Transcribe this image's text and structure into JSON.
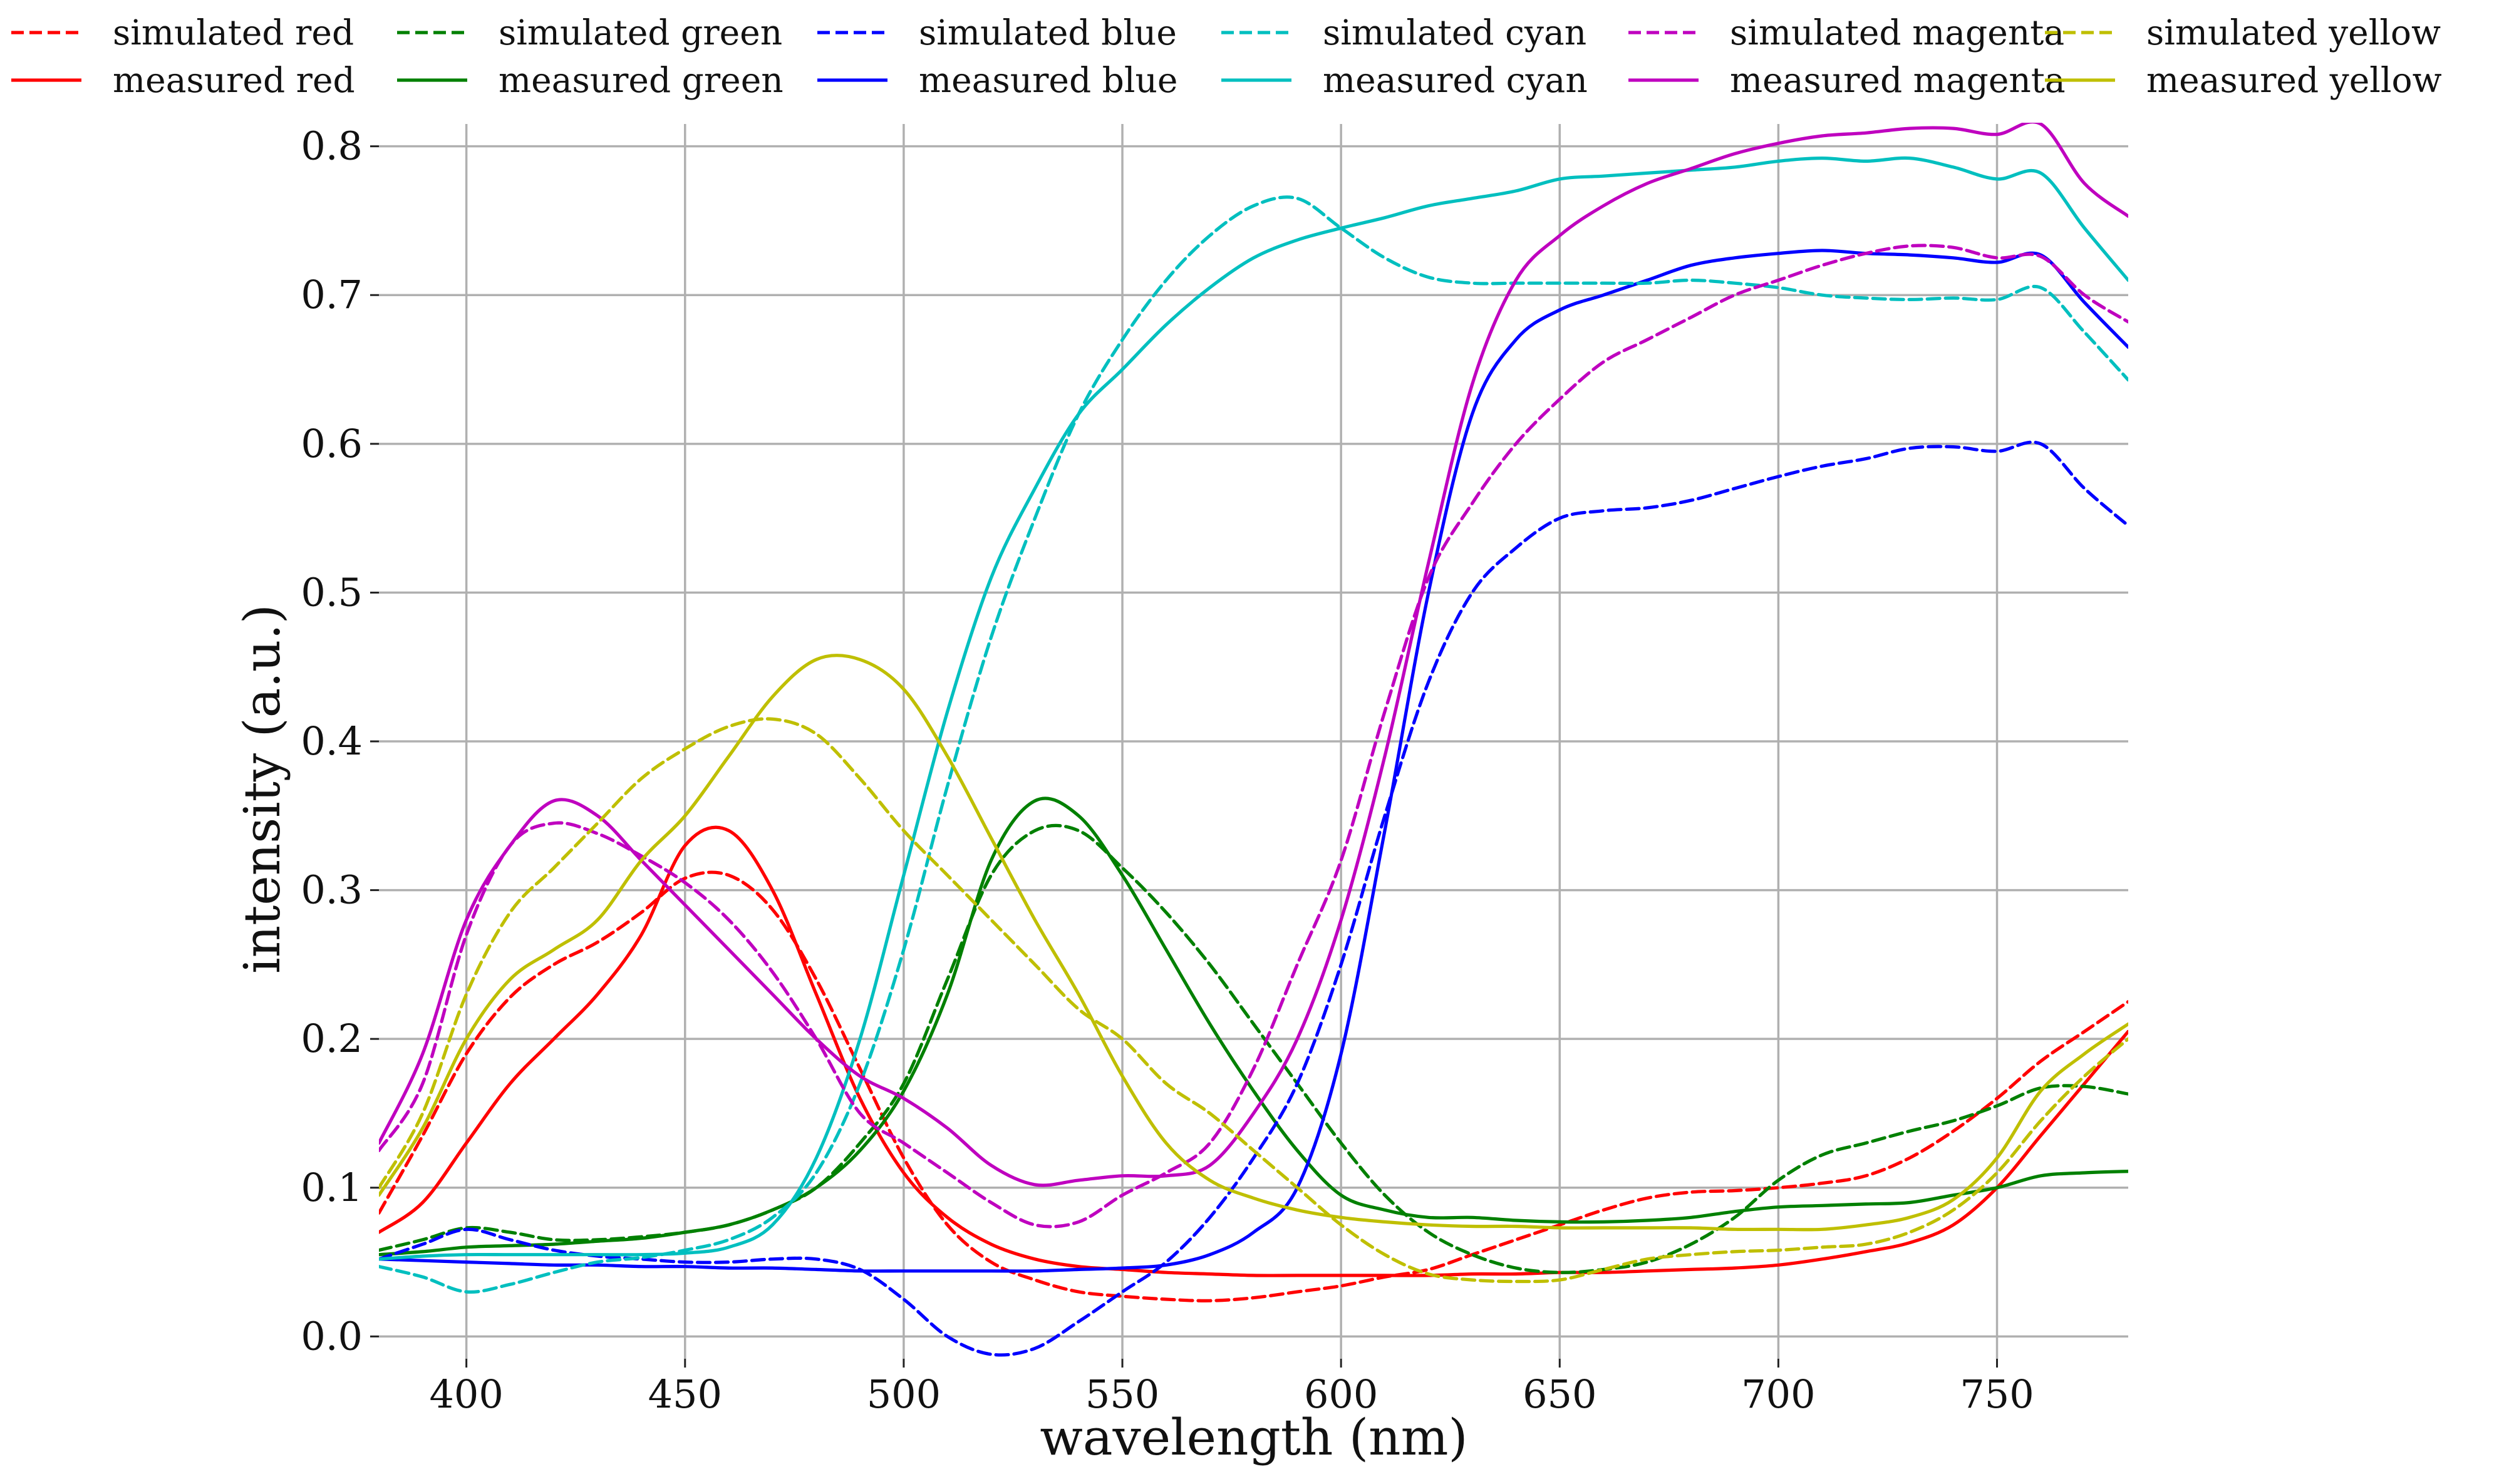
{
  "chart_data": {
    "type": "line",
    "title": "",
    "xlabel": "wavelength (nm)",
    "ylabel": "intensity (a.u.)",
    "xlim": [
      380,
      780
    ],
    "ylim": [
      -0.015,
      0.815
    ],
    "xticks": [
      400,
      450,
      500,
      550,
      600,
      650,
      700,
      750
    ],
    "xtick_labels": [
      "400",
      "450",
      "500",
      "550",
      "600",
      "650",
      "700",
      "750"
    ],
    "yticks": [
      0.0,
      0.1,
      0.2,
      0.3,
      0.4,
      0.5,
      0.6,
      0.7,
      0.8
    ],
    "ytick_labels": [
      "0.0",
      "0.1",
      "0.2",
      "0.3",
      "0.4",
      "0.5",
      "0.6",
      "0.7",
      "0.8"
    ],
    "grid": true,
    "legend_position": "top",
    "legend_columns": 6,
    "x": [
      380,
      390,
      400,
      410,
      420,
      430,
      440,
      450,
      460,
      470,
      480,
      490,
      500,
      510,
      520,
      530,
      540,
      550,
      560,
      570,
      580,
      590,
      600,
      610,
      620,
      630,
      640,
      650,
      660,
      670,
      680,
      690,
      700,
      710,
      720,
      730,
      740,
      750,
      760,
      770,
      780
    ],
    "series": [
      {
        "name": "simulated red",
        "color": "#ff0000",
        "dash": "dashed",
        "values": [
          0.083,
          0.135,
          0.19,
          0.228,
          0.25,
          0.265,
          0.285,
          0.308,
          0.31,
          0.287,
          0.24,
          0.18,
          0.12,
          0.075,
          0.05,
          0.038,
          0.03,
          0.027,
          0.025,
          0.024,
          0.026,
          0.03,
          0.034,
          0.04,
          0.045,
          0.055,
          0.065,
          0.075,
          0.085,
          0.093,
          0.097,
          0.098,
          0.1,
          0.103,
          0.108,
          0.12,
          0.138,
          0.16,
          0.185,
          0.205,
          0.225
        ]
      },
      {
        "name": "measured red",
        "color": "#ff0000",
        "dash": "solid",
        "values": [
          0.07,
          0.09,
          0.13,
          0.17,
          0.2,
          0.23,
          0.27,
          0.33,
          0.34,
          0.3,
          0.23,
          0.16,
          0.11,
          0.08,
          0.062,
          0.052,
          0.047,
          0.045,
          0.043,
          0.042,
          0.041,
          0.041,
          0.041,
          0.041,
          0.041,
          0.042,
          0.042,
          0.043,
          0.043,
          0.044,
          0.045,
          0.046,
          0.048,
          0.052,
          0.057,
          0.063,
          0.075,
          0.1,
          0.135,
          0.17,
          0.205
        ]
      },
      {
        "name": "simulated green",
        "color": "#008000",
        "dash": "dashed",
        "values": [
          0.058,
          0.065,
          0.073,
          0.07,
          0.065,
          0.065,
          0.067,
          0.07,
          0.075,
          0.085,
          0.1,
          0.13,
          0.17,
          0.24,
          0.31,
          0.34,
          0.34,
          0.315,
          0.285,
          0.25,
          0.21,
          0.17,
          0.13,
          0.095,
          0.07,
          0.055,
          0.046,
          0.043,
          0.045,
          0.05,
          0.062,
          0.08,
          0.105,
          0.122,
          0.13,
          0.138,
          0.145,
          0.155,
          0.167,
          0.168,
          0.163
        ]
      },
      {
        "name": "measured green",
        "color": "#008000",
        "dash": "solid",
        "values": [
          0.055,
          0.057,
          0.06,
          0.061,
          0.062,
          0.064,
          0.066,
          0.07,
          0.075,
          0.085,
          0.1,
          0.125,
          0.165,
          0.23,
          0.32,
          0.36,
          0.35,
          0.31,
          0.26,
          0.21,
          0.165,
          0.125,
          0.095,
          0.085,
          0.08,
          0.08,
          0.078,
          0.077,
          0.077,
          0.078,
          0.08,
          0.084,
          0.087,
          0.088,
          0.089,
          0.09,
          0.095,
          0.1,
          0.108,
          0.11,
          0.111
        ]
      },
      {
        "name": "simulated blue",
        "color": "#0000ff",
        "dash": "dashed",
        "values": [
          0.052,
          0.062,
          0.072,
          0.065,
          0.058,
          0.054,
          0.052,
          0.05,
          0.05,
          0.052,
          0.052,
          0.045,
          0.025,
          0.0,
          -0.012,
          -0.008,
          0.01,
          0.03,
          0.05,
          0.08,
          0.12,
          0.17,
          0.25,
          0.35,
          0.44,
          0.5,
          0.53,
          0.55,
          0.555,
          0.557,
          0.562,
          0.57,
          0.578,
          0.585,
          0.59,
          0.597,
          0.598,
          0.595,
          0.6,
          0.57,
          0.545
        ]
      },
      {
        "name": "measured blue",
        "color": "#0000ff",
        "dash": "solid",
        "values": [
          0.052,
          0.051,
          0.05,
          0.049,
          0.048,
          0.048,
          0.047,
          0.047,
          0.046,
          0.046,
          0.045,
          0.044,
          0.044,
          0.044,
          0.044,
          0.044,
          0.045,
          0.046,
          0.048,
          0.055,
          0.07,
          0.1,
          0.19,
          0.34,
          0.5,
          0.62,
          0.67,
          0.69,
          0.7,
          0.71,
          0.72,
          0.725,
          0.728,
          0.73,
          0.728,
          0.727,
          0.725,
          0.722,
          0.727,
          0.695,
          0.665
        ]
      },
      {
        "name": "simulated cyan",
        "color": "#00bfbf",
        "dash": "dashed",
        "values": [
          0.047,
          0.04,
          0.03,
          0.035,
          0.043,
          0.05,
          0.053,
          0.058,
          0.065,
          0.08,
          0.11,
          0.17,
          0.26,
          0.37,
          0.47,
          0.55,
          0.62,
          0.67,
          0.71,
          0.74,
          0.76,
          0.765,
          0.745,
          0.725,
          0.712,
          0.708,
          0.708,
          0.708,
          0.708,
          0.708,
          0.71,
          0.708,
          0.705,
          0.7,
          0.698,
          0.697,
          0.698,
          0.697,
          0.705,
          0.675,
          0.643
        ]
      },
      {
        "name": "measured cyan",
        "color": "#00bfbf",
        "dash": "solid",
        "values": [
          0.052,
          0.054,
          0.055,
          0.055,
          0.055,
          0.055,
          0.055,
          0.056,
          0.06,
          0.075,
          0.12,
          0.2,
          0.31,
          0.42,
          0.51,
          0.57,
          0.62,
          0.65,
          0.68,
          0.705,
          0.725,
          0.737,
          0.745,
          0.752,
          0.76,
          0.765,
          0.77,
          0.778,
          0.78,
          0.782,
          0.784,
          0.786,
          0.79,
          0.792,
          0.79,
          0.792,
          0.786,
          0.778,
          0.782,
          0.745,
          0.71
        ]
      },
      {
        "name": "simulated magenta",
        "color": "#bf00bf",
        "dash": "dashed",
        "values": [
          0.125,
          0.17,
          0.27,
          0.33,
          0.345,
          0.338,
          0.323,
          0.305,
          0.28,
          0.245,
          0.2,
          0.15,
          0.13,
          0.11,
          0.09,
          0.075,
          0.077,
          0.095,
          0.11,
          0.13,
          0.18,
          0.25,
          0.32,
          0.42,
          0.51,
          0.56,
          0.6,
          0.63,
          0.655,
          0.67,
          0.685,
          0.7,
          0.71,
          0.72,
          0.728,
          0.733,
          0.732,
          0.725,
          0.726,
          0.7,
          0.682
        ]
      },
      {
        "name": "measured magenta",
        "color": "#bf00bf",
        "dash": "solid",
        "values": [
          0.13,
          0.19,
          0.28,
          0.33,
          0.36,
          0.35,
          0.32,
          0.29,
          0.26,
          0.23,
          0.2,
          0.175,
          0.16,
          0.14,
          0.115,
          0.102,
          0.105,
          0.108,
          0.108,
          0.115,
          0.15,
          0.2,
          0.28,
          0.39,
          0.52,
          0.64,
          0.71,
          0.74,
          0.76,
          0.775,
          0.785,
          0.795,
          0.802,
          0.807,
          0.809,
          0.812,
          0.812,
          0.808,
          0.815,
          0.775,
          0.753
        ]
      },
      {
        "name": "simulated yellow",
        "color": "#bfbf00",
        "dash": "dashed",
        "values": [
          0.1,
          0.15,
          0.23,
          0.285,
          0.315,
          0.345,
          0.375,
          0.395,
          0.41,
          0.415,
          0.405,
          0.375,
          0.34,
          0.31,
          0.28,
          0.25,
          0.22,
          0.2,
          0.17,
          0.15,
          0.125,
          0.1,
          0.075,
          0.055,
          0.042,
          0.038,
          0.037,
          0.038,
          0.045,
          0.052,
          0.055,
          0.057,
          0.058,
          0.06,
          0.062,
          0.07,
          0.085,
          0.11,
          0.145,
          0.175,
          0.2
        ]
      },
      {
        "name": "measured yellow",
        "color": "#bfbf00",
        "dash": "solid",
        "values": [
          0.095,
          0.14,
          0.2,
          0.24,
          0.26,
          0.28,
          0.32,
          0.35,
          0.39,
          0.43,
          0.455,
          0.455,
          0.435,
          0.39,
          0.335,
          0.28,
          0.23,
          0.175,
          0.13,
          0.105,
          0.093,
          0.085,
          0.08,
          0.077,
          0.075,
          0.074,
          0.074,
          0.073,
          0.073,
          0.073,
          0.073,
          0.072,
          0.072,
          0.072,
          0.075,
          0.08,
          0.092,
          0.12,
          0.165,
          0.19,
          0.21
        ]
      }
    ]
  }
}
